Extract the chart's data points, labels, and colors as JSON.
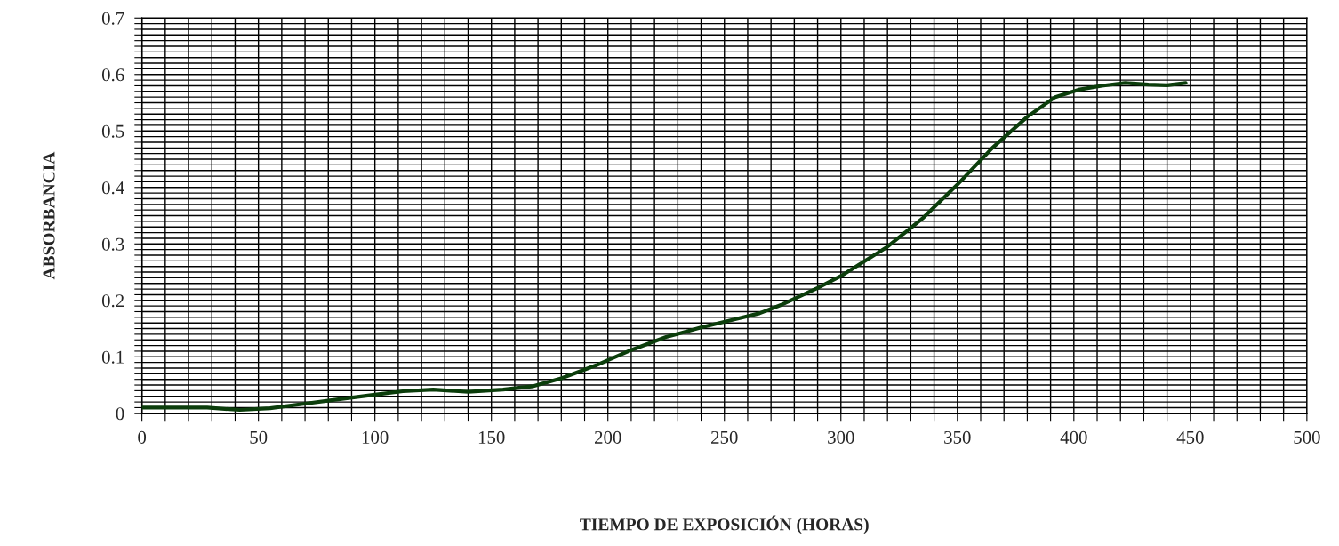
{
  "chart_data": {
    "type": "line",
    "xlabel": "TIEMPO DE EXPOSICIÓN (HORAS)",
    "ylabel": "ABSORBANCIA",
    "series": [
      {
        "color": "#0b3d0b",
        "x": [
          0,
          28,
          42,
          55,
          70,
          85,
          100,
          112,
          125,
          140,
          155,
          168,
          180,
          195,
          210,
          225,
          240,
          255,
          265,
          275,
          290,
          300,
          320,
          335,
          350,
          365,
          380,
          392,
          402,
          412,
          422,
          432,
          440,
          448
        ],
        "values": [
          0.01,
          0.01,
          0.006,
          0.009,
          0.017,
          0.025,
          0.033,
          0.039,
          0.042,
          0.038,
          0.042,
          0.048,
          0.062,
          0.085,
          0.112,
          0.135,
          0.152,
          0.167,
          0.177,
          0.193,
          0.222,
          0.243,
          0.295,
          0.345,
          0.405,
          0.47,
          0.525,
          0.56,
          0.573,
          0.58,
          0.585,
          0.582,
          0.581,
          0.585
        ]
      }
    ],
    "xlim": [
      0,
      500
    ],
    "ylim": [
      0,
      0.7
    ],
    "xticks": [
      0,
      {
        "value": 10,
        "label": null
      },
      {
        "value": 20,
        "label": null
      },
      {
        "value": 30,
        "label": null
      },
      {
        "value": 40,
        "label": null
      },
      50,
      {
        "value": 60,
        "label": null
      },
      {
        "value": 70,
        "label": null
      },
      {
        "value": 80,
        "label": null
      },
      {
        "value": 90,
        "label": null
      },
      100,
      {
        "value": 110,
        "label": null
      },
      {
        "value": 120,
        "label": null
      },
      {
        "value": 130,
        "label": null
      },
      {
        "value": 140,
        "label": null
      },
      150,
      {
        "value": 160,
        "label": null
      },
      {
        "value": 170,
        "label": null
      },
      {
        "value": 180,
        "label": null
      },
      {
        "value": 190,
        "label": null
      },
      200,
      {
        "value": 210,
        "label": null
      },
      {
        "value": 220,
        "label": null
      },
      {
        "value": 230,
        "label": null
      },
      {
        "value": 240,
        "label": null
      },
      250,
      {
        "value": 260,
        "label": null
      },
      {
        "value": 270,
        "label": null
      },
      {
        "value": 280,
        "label": null
      },
      {
        "value": 290,
        "label": null
      },
      300,
      {
        "value": 310,
        "label": null
      },
      {
        "value": 320,
        "label": null
      },
      {
        "value": 330,
        "label": null
      },
      {
        "value": 340,
        "label": null
      },
      350,
      {
        "value": 360,
        "label": null
      },
      {
        "value": 370,
        "label": null
      },
      {
        "value": 380,
        "label": null
      },
      {
        "value": 390,
        "label": null
      },
      400,
      {
        "value": 410,
        "label": null
      },
      {
        "value": 420,
        "label": null
      },
      {
        "value": 430,
        "label": null
      },
      {
        "value": 440,
        "label": null
      },
      450,
      {
        "value": 460,
        "label": null
      },
      {
        "value": 470,
        "label": null
      },
      {
        "value": 480,
        "label": null
      },
      {
        "value": 490,
        "label": null
      },
      500
    ],
    "yticks": [
      0,
      {
        "value": 0.01,
        "label": null
      },
      {
        "value": 0.02,
        "label": null
      },
      {
        "value": 0.03,
        "label": null
      },
      {
        "value": 0.04,
        "label": null
      },
      {
        "value": 0.05,
        "label": null
      },
      {
        "value": 0.06,
        "label": null
      },
      {
        "value": 0.07,
        "label": null
      },
      {
        "value": 0.08,
        "label": null
      },
      {
        "value": 0.09,
        "label": null
      },
      0.1,
      {
        "value": 0.11,
        "label": null
      },
      {
        "value": 0.12,
        "label": null
      },
      {
        "value": 0.13,
        "label": null
      },
      {
        "value": 0.14,
        "label": null
      },
      {
        "value": 0.15,
        "label": null
      },
      {
        "value": 0.16,
        "label": null
      },
      {
        "value": 0.17,
        "label": null
      },
      {
        "value": 0.18,
        "label": null
      },
      {
        "value": 0.19,
        "label": null
      },
      0.2,
      {
        "value": 0.21,
        "label": null
      },
      {
        "value": 0.22,
        "label": null
      },
      {
        "value": 0.23,
        "label": null
      },
      {
        "value": 0.24,
        "label": null
      },
      {
        "value": 0.25,
        "label": null
      },
      {
        "value": 0.26,
        "label": null
      },
      {
        "value": 0.27,
        "label": null
      },
      {
        "value": 0.28,
        "label": null
      },
      {
        "value": 0.29,
        "label": null
      },
      0.3,
      {
        "value": 0.31,
        "label": null
      },
      {
        "value": 0.32,
        "label": null
      },
      {
        "value": 0.33,
        "label": null
      },
      {
        "value": 0.34,
        "label": null
      },
      {
        "value": 0.35,
        "label": null
      },
      {
        "value": 0.36,
        "label": null
      },
      {
        "value": 0.37,
        "label": null
      },
      {
        "value": 0.38,
        "label": null
      },
      {
        "value": 0.39,
        "label": null
      },
      0.4,
      {
        "value": 0.41,
        "label": null
      },
      {
        "value": 0.42,
        "label": null
      },
      {
        "value": 0.43,
        "label": null
      },
      {
        "value": 0.44,
        "label": null
      },
      {
        "value": 0.45,
        "label": null
      },
      {
        "value": 0.46,
        "label": null
      },
      {
        "value": 0.47,
        "label": null
      },
      {
        "value": 0.48,
        "label": null
      },
      {
        "value": 0.49,
        "label": null
      },
      0.5,
      {
        "value": 0.51,
        "label": null
      },
      {
        "value": 0.52,
        "label": null
      },
      {
        "value": 0.53,
        "label": null
      },
      {
        "value": 0.54,
        "label": null
      },
      {
        "value": 0.55,
        "label": null
      },
      {
        "value": 0.56,
        "label": null
      },
      {
        "value": 0.57,
        "label": null
      },
      {
        "value": 0.58,
        "label": null
      },
      {
        "value": 0.59,
        "label": null
      },
      0.6,
      {
        "value": 0.61,
        "label": null
      },
      {
        "value": 0.62,
        "label": null
      },
      {
        "value": 0.63,
        "label": null
      },
      {
        "value": 0.64,
        "label": null
      },
      {
        "value": 0.65,
        "label": null
      },
      {
        "value": 0.66,
        "label": null
      },
      {
        "value": 0.67,
        "label": null
      },
      {
        "value": 0.68,
        "label": null
      },
      {
        "value": 0.69,
        "label": null
      },
      0.7
    ],
    "grid": true,
    "marker": "none",
    "line_style": "solid"
  }
}
